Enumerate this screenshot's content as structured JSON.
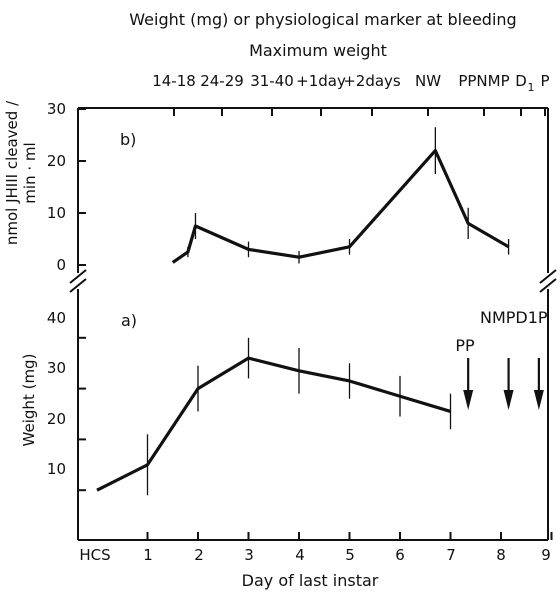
{
  "chart_data": [
    {
      "panel": "b)",
      "type": "line",
      "top_title": "Weight (mg) or physiological marker at bleeding",
      "top_subtitle": "Maximum weight",
      "top_tick_labels": [
        "14-18",
        "24-29",
        "31-40",
        "+1day",
        "+2days",
        "NW",
        "PPNMP",
        "D",
        "1",
        "P"
      ],
      "ylabel_line1": "nmol JHIII cleaved /",
      "ylabel_line2": "min · ml",
      "ylim": [
        0,
        30
      ],
      "y_ticks": [
        "0",
        "10",
        "20",
        "30"
      ],
      "x": [
        1.5,
        1.8,
        1.95,
        3.0,
        4.0,
        5.0,
        6.7,
        7.35,
        8.15
      ],
      "values": [
        0.5,
        2.5,
        7.5,
        3.0,
        1.5,
        3.5,
        22.0,
        8.0,
        3.5
      ],
      "error": [
        0,
        1.0,
        2.5,
        1.5,
        1.2,
        1.5,
        4.5,
        3.0,
        1.5
      ]
    },
    {
      "panel": "a)",
      "type": "line",
      "xlabel": "Day of last instar",
      "ylabel": "Weight (mg)",
      "ylim": [
        0,
        40
      ],
      "y_ticks": [
        "10",
        "20",
        "30",
        "40"
      ],
      "x_tick_labels": [
        "HCS",
        "1",
        "2",
        "3",
        "4",
        "5",
        "6",
        "7",
        "8",
        "9"
      ],
      "x": [
        0,
        1,
        2,
        3,
        4,
        5,
        6,
        7
      ],
      "values": [
        10,
        15,
        30,
        36,
        33.5,
        31.5,
        28.5,
        25.5
      ],
      "error": [
        0,
        6,
        4.5,
        4,
        4.5,
        3.5,
        4,
        3.5
      ],
      "arrows": [
        {
          "label": "PP",
          "day": 7.35
        },
        {
          "label": "NMP",
          "day": 8.15
        },
        {
          "label": "D1P",
          "day": 8.75
        }
      ]
    }
  ]
}
